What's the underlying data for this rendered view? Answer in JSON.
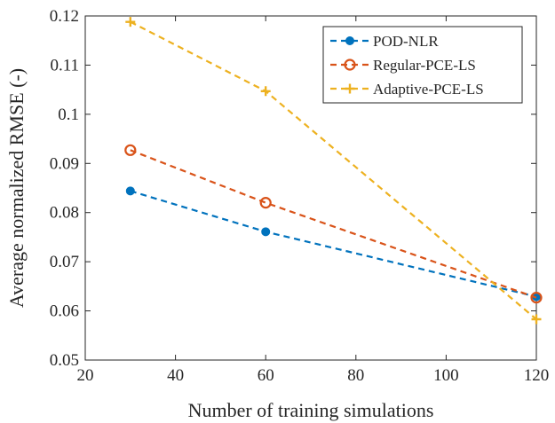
{
  "chart_data": {
    "type": "line",
    "title": "",
    "xlabel": "Number of training simulations",
    "ylabel": "Average normalized RMSE (-)",
    "xlim": [
      20,
      120
    ],
    "ylim": [
      0.05,
      0.12
    ],
    "xticks": [
      20,
      40,
      60,
      80,
      100,
      120
    ],
    "yticks": [
      0.05,
      0.06,
      0.07,
      0.08,
      0.09,
      0.1,
      0.11,
      0.12
    ],
    "xtick_labels": [
      "20",
      "40",
      "60",
      "80",
      "100",
      "120"
    ],
    "ytick_labels": [
      "0.05",
      "0.06",
      "0.07",
      "0.08",
      "0.09",
      "0.1",
      "0.11",
      "0.12"
    ],
    "grid": false,
    "legend_position": "top-right",
    "series": [
      {
        "name": "POD-NLR",
        "x": [
          30,
          60,
          120
        ],
        "y": [
          0.0844,
          0.0761,
          0.0629
        ],
        "color": "#0072BD",
        "marker": "dot",
        "line": "dashed"
      },
      {
        "name": "Regular-PCE-LS",
        "x": [
          30,
          60,
          120
        ],
        "y": [
          0.0927,
          0.082,
          0.0627
        ],
        "color": "#D95319",
        "marker": "circle",
        "line": "dashed"
      },
      {
        "name": "Adaptive-PCE-LS",
        "x": [
          30,
          60,
          120
        ],
        "y": [
          0.1188,
          0.1047,
          0.0583
        ],
        "color": "#EDB120",
        "marker": "plus",
        "line": "dashed"
      }
    ]
  }
}
